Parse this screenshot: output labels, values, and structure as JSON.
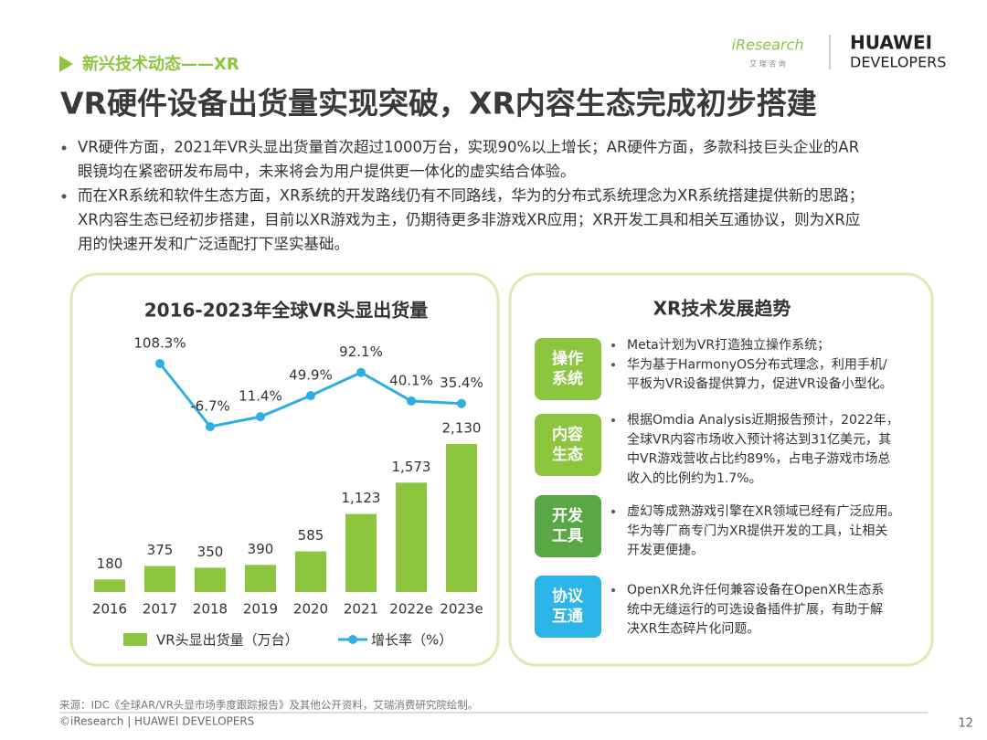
{
  "header": {
    "section": "新兴技术动态——XR",
    "title": "VR硬件设备出货量实现突破，XR内容生态完成初步搭建",
    "logo": {
      "brand": "iResearch",
      "brand_sub": "艾 瑞 咨 询",
      "partner": "HUAWEI",
      "partner_sub": "DEVELOPERS"
    }
  },
  "bullets": [
    [
      "VR硬件方面，2021年VR头显出货量首次超过1000万台，实现90%以上增长；AR硬件方面，多款科技巨头企业的AR",
      "眼镜均在紧密研发布局中，未来将会为用户提供更一体化的虚实结合体验。"
    ],
    [
      "而在XR系统和软件生态方面，XR系统的开发路线仍有不同路线，华为的分布式系统理念为XR系统搭建提供新的思路；",
      "XR内容生态已经初步搭建，目前以XR游戏为主，仍期待更多非游戏XR应用；XR开发工具和相关互通协议，则为XR应",
      "用的快速开发和广泛适配打下坚实基础。"
    ]
  ],
  "chart_data": {
    "type": "bar",
    "title": "2016-2023年全球VR头显出货量",
    "categories": [
      "2016",
      "2017",
      "2018",
      "2019",
      "2020",
      "2021",
      "2022e",
      "2023e"
    ],
    "series": [
      {
        "name": "VR头显出货量（万台）",
        "color": "#8cc63f",
        "values": [
          180,
          375,
          350,
          390,
          585,
          1123,
          1573,
          2130
        ],
        "value_labels": [
          "180",
          "375",
          "350",
          "390",
          "585",
          "1,123",
          "1,573",
          "2,130"
        ]
      },
      {
        "name": "增长率（%）",
        "type": "line",
        "axis": "y2",
        "color": "#2eaee3",
        "values": [
          null,
          108.3,
          -6.7,
          11.4,
          49.9,
          92.1,
          40.1,
          35.4
        ],
        "value_labels": [
          null,
          "108.3%",
          "-6.7%",
          "11.4%",
          "49.9%",
          "92.1%",
          "40.1%",
          "35.4%"
        ]
      }
    ]
  },
  "trends": {
    "title": "XR技术发展趋势",
    "items": [
      {
        "label": [
          "操作",
          "系统"
        ],
        "color": "#8cc63f",
        "bullets": [
          [
            "Meta计划为VR打造独立操作系统；"
          ],
          [
            "华为基于HarmonyOS分布式理念，利用手机/",
            "平板为VR设备提供算力，促进VR设备小型化。"
          ]
        ]
      },
      {
        "label": [
          "内容",
          "生态"
        ],
        "color": "#8cc63f",
        "bullets": [
          [
            "根据Omdia Analysis近期报告预计，2022年，",
            "全球VR内容市场收入预计将达到31亿美元，其",
            "中VR游戏营收占比约89%，占电子游戏市场总",
            "收入的比例约为1.7%。"
          ]
        ]
      },
      {
        "label": [
          "开发",
          "工具"
        ],
        "color": "#5aa845",
        "bullets": [
          [
            "虚幻等成熟游戏引擎在XR领域已经有广泛应用。",
            "华为等厂商专门为XR提供开发的工具，让相关",
            "开发更便捷。"
          ]
        ]
      },
      {
        "label": [
          "协议",
          "互通"
        ],
        "color": "#2bb5e8",
        "bullets": [
          [
            "OpenXR允许任何兼容设备在OpenXR生态系",
            "统中无缝运行的可选设备插件扩展，有助于解",
            "决XR生态碎片化问题。"
          ]
        ]
      }
    ]
  },
  "footer": {
    "source": "来源：IDC《全球AR/VR头显市场季度跟踪报告》及其他公开资料，艾瑞消费研究院绘制。",
    "copyright": "©iResearch | HUAWEI DEVELOPERS",
    "page": 12
  }
}
